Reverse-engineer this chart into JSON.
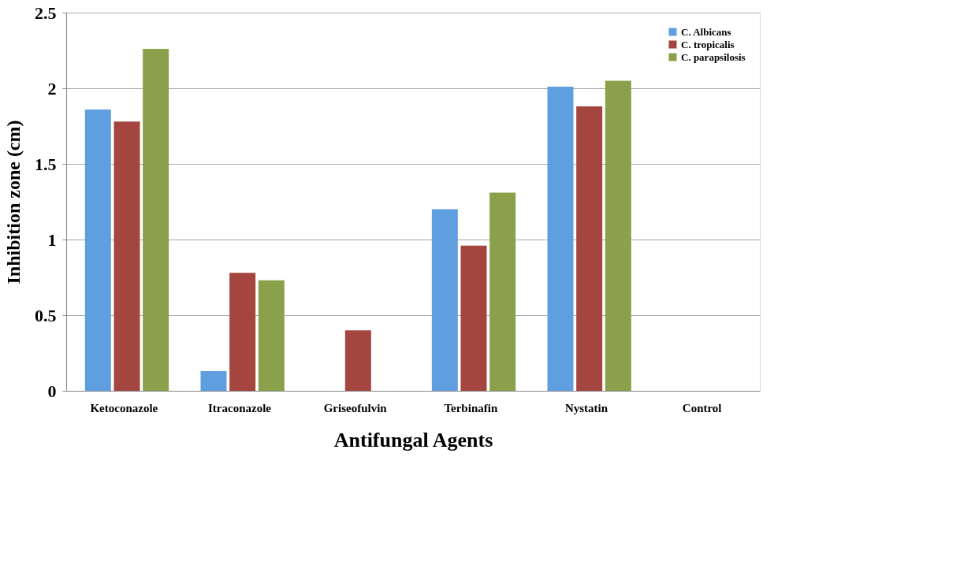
{
  "chart_data": {
    "type": "bar",
    "xlabel": "Antifungal Agents",
    "ylabel": "Inhibition zone (cm)",
    "categories": [
      "Ketoconazole",
      "Itraconazole",
      "Griseofulvin",
      "Terbinafin",
      "Nystatin",
      "Control"
    ],
    "series": [
      {
        "name": "C. Albicans",
        "color": "#5f9fe0",
        "values": [
          1.86,
          0.13,
          0,
          1.2,
          2.01,
          0
        ]
      },
      {
        "name": "C. tropicalis",
        "color": "#a5453f",
        "values": [
          1.78,
          0.78,
          0.4,
          0.96,
          1.88,
          0
        ]
      },
      {
        "name": "C. parapsilosis",
        "color": "#8ba04a",
        "values": [
          2.26,
          0.73,
          0,
          1.31,
          2.05,
          0
        ]
      }
    ],
    "ylim": [
      0,
      2.5
    ],
    "yticks": [
      0,
      0.5,
      1,
      1.5,
      2,
      2.5
    ],
    "grid": "y",
    "legend": "top right"
  }
}
